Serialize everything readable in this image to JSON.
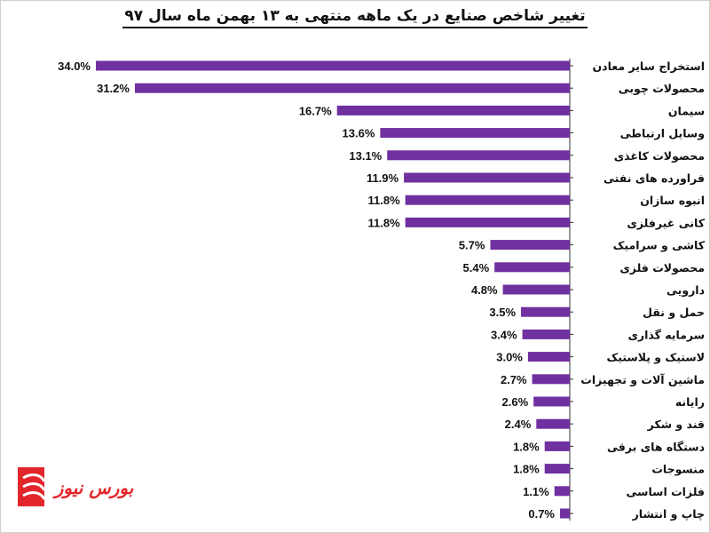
{
  "chart_data": {
    "type": "bar",
    "orientation": "horizontal",
    "title": "تغییر شاخص صنایع در یک ماهه منتهی به ۱۳ بهمن ماه سال ۹۷",
    "categories": [
      "استخراج سایر معادن",
      "محصولات چوبی",
      "سیمان",
      "وسایل ارتباطی",
      "محصولات کاغذی",
      "فراورده های نفتی",
      "انبوه سازان",
      "کانی غیرفلزی",
      "کاشی و سرامیک",
      "محصولات فلزی",
      "دارویی",
      "حمل و نقل",
      "سرمایه گذاری",
      "لاستیک و پلاستیک",
      "ماشین آلات و تجهیزات",
      "رایانه",
      "قند و شکر",
      "دستگاه های برقی",
      "منسوجات",
      "فلزات اساسی",
      "چاپ و انتشار"
    ],
    "values": [
      34.0,
      31.2,
      16.7,
      13.6,
      13.1,
      11.9,
      11.8,
      11.8,
      5.7,
      5.4,
      4.8,
      3.5,
      3.4,
      3.0,
      2.7,
      2.6,
      2.4,
      1.8,
      1.8,
      1.1,
      0.7
    ],
    "value_labels": [
      "34.0%",
      "31.2%",
      "16.7%",
      "13.6%",
      "13.1%",
      "11.9%",
      "11.8%",
      "11.8%",
      "5.7%",
      "5.4%",
      "4.8%",
      "3.5%",
      "3.4%",
      "3.0%",
      "2.7%",
      "2.6%",
      "2.4%",
      "1.8%",
      "1.8%",
      "1.1%",
      "0.7%"
    ],
    "unit": "%",
    "bar_color": "#7030a0",
    "grid": false,
    "legend": "none"
  },
  "logo": {
    "text": "بورس نیوز",
    "color": "#e3262b"
  }
}
